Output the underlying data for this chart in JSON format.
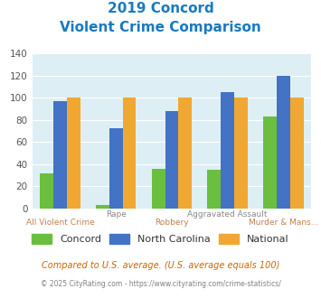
{
  "title_line1": "2019 Concord",
  "title_line2": "Violent Crime Comparison",
  "categories": [
    "All Violent Crime",
    "Rape",
    "Robbery",
    "Aggravated Assault",
    "Murder & Mans..."
  ],
  "series": {
    "Concord": [
      32,
      3,
      36,
      35,
      83
    ],
    "North Carolina": [
      97,
      73,
      88,
      105,
      120
    ],
    "National": [
      100,
      100,
      100,
      100,
      100
    ]
  },
  "colors": {
    "Concord": "#6abf3f",
    "North Carolina": "#4472c4",
    "National": "#f0a832"
  },
  "ylim": [
    0,
    140
  ],
  "yticks": [
    0,
    20,
    40,
    60,
    80,
    100,
    120,
    140
  ],
  "background_color": "#deeef5",
  "title_color": "#1a7abf",
  "xlabel_top_color": "#888888",
  "xlabel_bot_color": "#c08050",
  "footnote1": "Compared to U.S. average. (U.S. average equals 100)",
  "footnote2": "© 2025 CityRating.com - https://www.cityrating.com/crime-statistics/",
  "footnote1_color": "#cc6600",
  "footnote2_color": "#808080",
  "label_top": [
    "",
    "Rape",
    "",
    "Aggravated Assault",
    ""
  ],
  "label_bottom": [
    "All Violent Crime",
    "",
    "Robbery",
    "",
    "Murder & Mans..."
  ]
}
